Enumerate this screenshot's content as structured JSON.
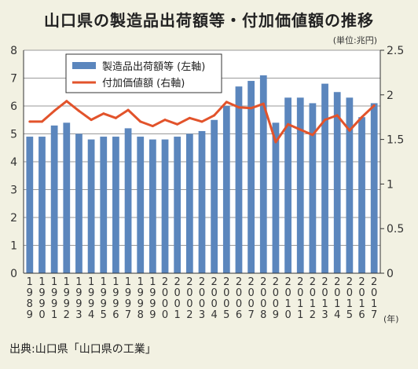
{
  "title": "山口県の製造品出荷額等・付加価値額の推移",
  "unit_label": "(単位:兆円)",
  "year_unit": "(年)",
  "source": "出典:山口県「山口県の工業」",
  "colors": {
    "bar": "#5b86bd",
    "line": "#e2532b",
    "background": "#f2f1e2",
    "grid": "#9a9a9a"
  },
  "chart_data": {
    "type": "bar",
    "categories": [
      "1989",
      "1990",
      "1991",
      "1992",
      "1993",
      "1994",
      "1995",
      "1996",
      "1997",
      "1998",
      "1999",
      "2000",
      "2001",
      "2002",
      "2003",
      "2004",
      "2005",
      "2006",
      "2007",
      "2008",
      "2009",
      "2010",
      "2011",
      "2012",
      "2013",
      "2014",
      "2015",
      "2016",
      "2017"
    ],
    "series": [
      {
        "name": "製造品出荷額等 (左軸)",
        "type": "bar",
        "axis": "left",
        "values": [
          4.9,
          4.9,
          5.3,
          5.4,
          5.0,
          4.8,
          4.9,
          4.9,
          5.2,
          4.9,
          4.8,
          4.8,
          4.9,
          5.0,
          5.1,
          5.5,
          6.0,
          6.7,
          6.9,
          7.1,
          5.4,
          6.3,
          6.3,
          6.1,
          6.8,
          6.5,
          6.3,
          5.6,
          6.1
        ]
      },
      {
        "name": "付加価値額 (右軸)",
        "type": "line",
        "axis": "right",
        "values": [
          1.7,
          1.7,
          1.82,
          1.93,
          1.82,
          1.72,
          1.79,
          1.74,
          1.83,
          1.7,
          1.65,
          1.72,
          1.67,
          1.74,
          1.7,
          1.77,
          1.92,
          1.86,
          1.85,
          1.9,
          1.47,
          1.67,
          1.61,
          1.55,
          1.72,
          1.77,
          1.6,
          1.75,
          1.88
        ]
      }
    ],
    "ylim_left": [
      0,
      8
    ],
    "yticks_left": [
      "0",
      "1",
      "2",
      "3",
      "4",
      "5",
      "6",
      "7",
      "8"
    ],
    "ylim_right": [
      0,
      2.5
    ],
    "yticks_right": [
      "0",
      "0.5",
      "1",
      "1.5",
      "2",
      "2.5"
    ],
    "grid": "horizontal",
    "legend": "top-left"
  }
}
